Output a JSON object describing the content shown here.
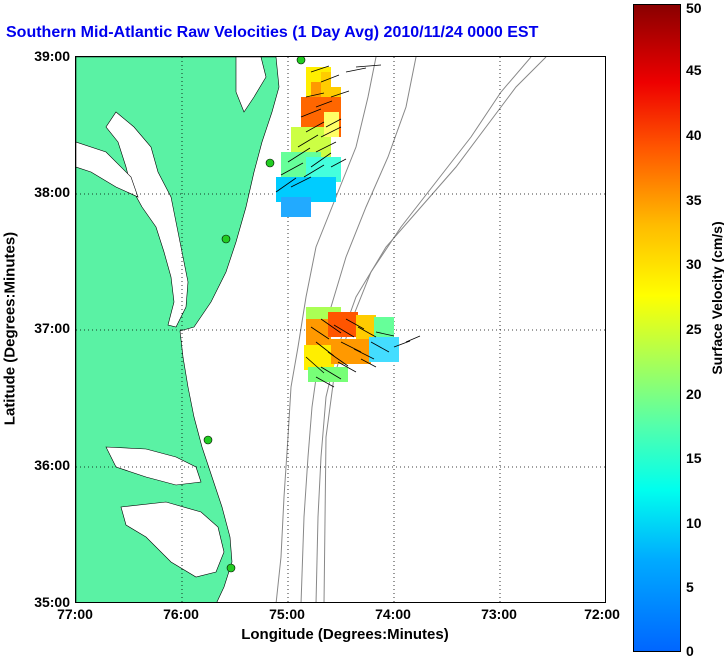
{
  "title": "Southern Mid-Atlantic Raw Velocities (1 Day Avg) 2010/11/24 0000 EST",
  "axes": {
    "xlabel": "Longitude (Degrees:Minutes)",
    "ylabel": "Latitude (Degrees:Minutes)",
    "xticks": [
      "77:00",
      "76:00",
      "75:00",
      "74:00",
      "73:00",
      "72:00"
    ],
    "yticks": [
      "39:00",
      "38:00",
      "37:00",
      "36:00",
      "35:00"
    ],
    "grid": "dotted"
  },
  "colorbar": {
    "label": "Surface Velocity (cm/s)",
    "ticks": [
      "50",
      "45",
      "40",
      "35",
      "30",
      "25",
      "20",
      "15",
      "10",
      "5",
      "0"
    ],
    "range": [
      0,
      50
    ]
  },
  "colors": {
    "land": "#5af2a4",
    "water": "#ffffff",
    "title": "#0000ee",
    "bathymetry": "#888888",
    "stations": "#22cc22"
  },
  "chart_data": {
    "type": "heatmap",
    "extent": {
      "lon": [
        -77,
        -72
      ],
      "lat": [
        35,
        39
      ]
    },
    "regions": [
      {
        "lat": 38.4,
        "lon": -74.85,
        "speed_range": [
          5,
          40
        ]
      },
      {
        "lat": 36.85,
        "lon": -74.55,
        "speed_range": [
          8,
          40
        ]
      }
    ]
  }
}
